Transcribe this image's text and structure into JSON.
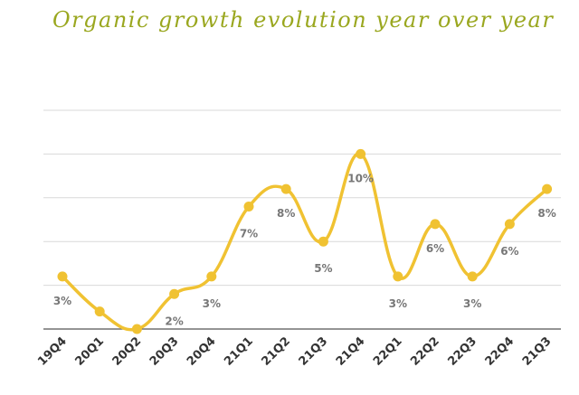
{
  "title": "Organic growth evolution year over year",
  "colors": {
    "title": "#9aa71f",
    "line": "#f0c232",
    "label": "#777777",
    "tick": "#333333",
    "grid": "#d9d9d9",
    "axis": "#555555"
  },
  "chart_data": {
    "type": "line",
    "title": "Organic growth evolution year over year",
    "categories": [
      "19Q4",
      "20Q1",
      "20Q2",
      "20Q3",
      "20Q4",
      "21Q1",
      "21Q2",
      "21Q3",
      "21Q4",
      "22Q1",
      "22Q2",
      "22Q3",
      "22Q4",
      "21Q3"
    ],
    "series": [
      {
        "values": [
          3,
          1,
          0,
          2,
          3,
          7,
          8,
          5,
          10,
          3,
          6,
          3,
          6,
          8
        ],
        "labels": [
          "3%",
          "",
          "",
          "2%",
          "3%",
          "7%",
          "8%",
          "5%",
          "10%",
          "3%",
          "6%",
          "3%",
          "6%",
          "8%"
        ]
      }
    ],
    "ylim": [
      0,
      12.5
    ],
    "grid": true,
    "smooth": true
  }
}
